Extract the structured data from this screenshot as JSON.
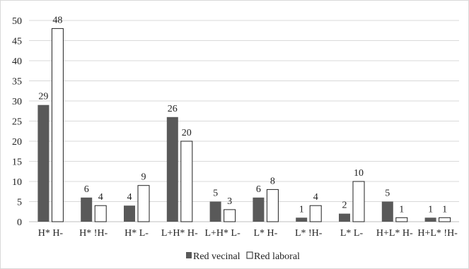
{
  "chart_data": {
    "type": "bar",
    "categories": [
      "H* H-",
      "H* !H-",
      "H* L-",
      "L+H* H-",
      "L+H* L-",
      "L* H-",
      "L* !H-",
      "L* L-",
      "H+L* H-",
      "H+L* !H-"
    ],
    "series": [
      {
        "name": "Red vecinal",
        "values": [
          29,
          6,
          4,
          26,
          5,
          6,
          1,
          2,
          5,
          1
        ],
        "color": "#595959"
      },
      {
        "name": "Red laboral",
        "values": [
          48,
          4,
          9,
          20,
          3,
          8,
          4,
          10,
          1,
          1
        ],
        "color": "#ffffff"
      }
    ],
    "yticks": [
      0,
      5,
      10,
      15,
      20,
      25,
      30,
      35,
      40,
      45,
      50
    ],
    "ylim": [
      0,
      50
    ],
    "grid": true,
    "data_labels": true,
    "legend": "bottom",
    "title": "",
    "xlabel": "",
    "ylabel": ""
  }
}
